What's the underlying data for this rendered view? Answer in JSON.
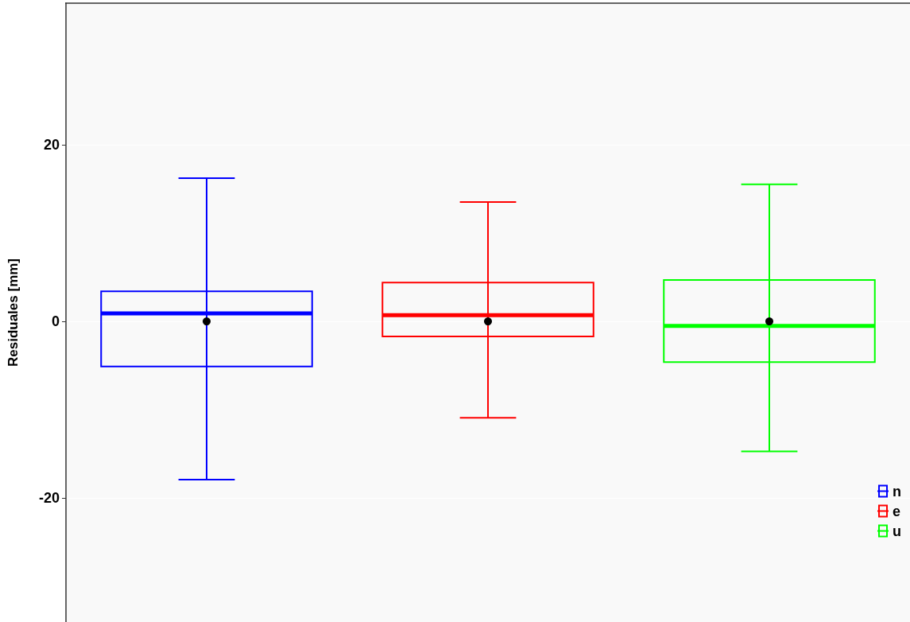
{
  "chart_data": {
    "type": "box",
    "ylabel": "Residuales [mm]",
    "categories": [
      null,
      null,
      null
    ],
    "series": [
      {
        "name": "n",
        "color": "#0000ff",
        "boxes": [
          {
            "low": -17.9,
            "q1": -5.1,
            "median": 0.9,
            "q3": 3.4,
            "high": 16.2,
            "mean": 0
          },
          null,
          null
        ]
      },
      {
        "name": "e",
        "color": "#ff0000",
        "boxes": [
          null,
          {
            "low": -10.9,
            "q1": -1.7,
            "median": 0.7,
            "q3": 4.4,
            "high": 13.5,
            "mean": 0
          },
          null
        ]
      },
      {
        "name": "u",
        "color": "#00ff00",
        "boxes": [
          null,
          null,
          {
            "low": -14.7,
            "q1": -4.6,
            "median": -0.5,
            "q3": 4.7,
            "high": 15.5,
            "mean": 0
          }
        ]
      }
    ],
    "ylim": [
      -34,
      36
    ],
    "yticks": [
      -20,
      0,
      20
    ],
    "grid": "y",
    "legend": "bottom right",
    "tick_labels": "y"
  }
}
